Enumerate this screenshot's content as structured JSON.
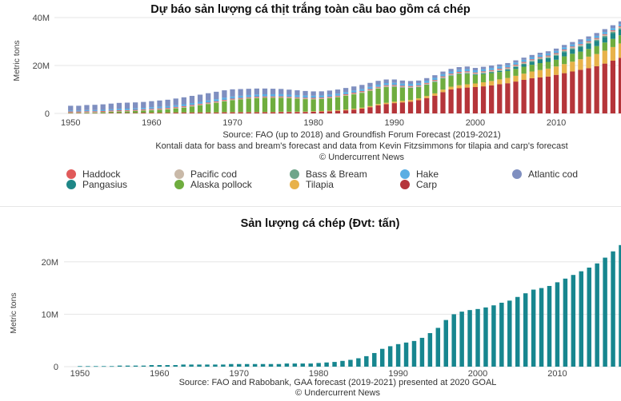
{
  "chart_data": [
    {
      "type": "bar",
      "stacked": true,
      "title": "Dự báo sản lượng cá thịt trắng toàn cầu bao gồm cá chép",
      "ylabel": "Metric tons",
      "xlabel": "",
      "ylim": [
        0,
        40000000
      ],
      "yticks": [
        0,
        20000000,
        40000000
      ],
      "ytick_labels": [
        "0",
        "20M",
        "40M"
      ],
      "xticks": [
        1950,
        1960,
        1970,
        1980,
        1990,
        2000,
        2010
      ],
      "x_range": [
        1948,
        2018
      ],
      "grid": true,
      "legend_position": "bottom",
      "sources": [
        "Source: FAO (up to 2018) and Groundfish Forum Forecast (2019-2021)",
        "Kontali data for bass and bream's forecast and data from Kevin Fitzsimmons for tilapia and carp's forecast",
        "© Undercurrent News"
      ],
      "x": [
        1950,
        1951,
        1952,
        1953,
        1954,
        1955,
        1956,
        1957,
        1958,
        1959,
        1960,
        1961,
        1962,
        1963,
        1964,
        1965,
        1966,
        1967,
        1968,
        1969,
        1970,
        1971,
        1972,
        1973,
        1974,
        1975,
        1976,
        1977,
        1978,
        1979,
        1980,
        1981,
        1982,
        1983,
        1984,
        1985,
        1986,
        1987,
        1988,
        1989,
        1990,
        1991,
        1992,
        1993,
        1994,
        1995,
        1996,
        1997,
        1998,
        1999,
        2000,
        2001,
        2002,
        2003,
        2004,
        2005,
        2006,
        2007,
        2008,
        2009,
        2010,
        2011,
        2012,
        2013,
        2014,
        2015,
        2016,
        2017,
        2018
      ],
      "series": [
        {
          "name": "Carp",
          "color": "#b5353a",
          "values": [
            0.1,
            0.1,
            0.1,
            0.1,
            0.1,
            0.2,
            0.2,
            0.2,
            0.2,
            0.3,
            0.3,
            0.3,
            0.3,
            0.4,
            0.4,
            0.4,
            0.4,
            0.4,
            0.4,
            0.5,
            0.5,
            0.5,
            0.5,
            0.5,
            0.5,
            0.5,
            0.6,
            0.6,
            0.6,
            0.6,
            0.7,
            0.8,
            0.9,
            1.1,
            1.3,
            1.6,
            2.0,
            2.6,
            3.4,
            3.9,
            4.3,
            4.6,
            4.9,
            5.5,
            6.4,
            7.4,
            8.9,
            10.0,
            10.5,
            10.8,
            11.0,
            11.3,
            11.7,
            12.2,
            12.6,
            13.3,
            14.0,
            14.7,
            15.0,
            15.4,
            16.1,
            16.8,
            17.5,
            18.2,
            18.9,
            19.7,
            20.8,
            22.0,
            23.2
          ]
        },
        {
          "name": "Tilapia",
          "color": "#e8b24a",
          "values": [
            0,
            0,
            0,
            0,
            0,
            0,
            0,
            0,
            0,
            0,
            0.01,
            0.01,
            0.02,
            0.02,
            0.03,
            0.03,
            0.04,
            0.04,
            0.05,
            0.05,
            0.06,
            0.07,
            0.08,
            0.09,
            0.1,
            0.11,
            0.12,
            0.13,
            0.15,
            0.17,
            0.2,
            0.22,
            0.25,
            0.28,
            0.32,
            0.36,
            0.4,
            0.45,
            0.5,
            0.55,
            0.6,
            0.65,
            0.72,
            0.8,
            0.88,
            0.96,
            1.05,
            1.15,
            1.25,
            1.35,
            1.5,
            1.7,
            1.85,
            2.0,
            2.2,
            2.4,
            2.6,
            2.8,
            3.1,
            3.3,
            3.5,
            3.8,
            4.1,
            4.4,
            4.8,
            5.1,
            5.4,
            5.7,
            6.0
          ]
        },
        {
          "name": "Alaska pollock",
          "color": "#6fad3f",
          "values": [
            0.2,
            0.2,
            0.3,
            0.3,
            0.4,
            0.5,
            0.6,
            0.7,
            0.8,
            0.9,
            1.0,
            1.2,
            1.4,
            1.7,
            2.0,
            2.5,
            3.0,
            3.5,
            4.0,
            4.5,
            5.0,
            5.3,
            5.6,
            5.8,
            5.9,
            5.9,
            5.8,
            5.6,
            5.4,
            5.2,
            5.0,
            5.0,
            5.2,
            5.4,
            5.8,
            6.0,
            6.2,
            6.4,
            6.5,
            6.6,
            6.2,
            5.5,
            5.0,
            4.6,
            4.6,
            4.7,
            4.6,
            4.5,
            4.6,
            4.4,
            3.5,
            3.4,
            3.3,
            3.1,
            2.9,
            2.9,
            2.9,
            2.8,
            2.9,
            2.8,
            2.8,
            3.2,
            3.3,
            3.2,
            3.2,
            3.3,
            3.4,
            3.4,
            3.4
          ]
        },
        {
          "name": "Pangasius",
          "color": "#1f8787",
          "values": [
            0,
            0,
            0,
            0,
            0,
            0,
            0,
            0,
            0,
            0,
            0,
            0,
            0,
            0,
            0,
            0,
            0,
            0,
            0,
            0,
            0,
            0,
            0,
            0,
            0,
            0,
            0,
            0,
            0,
            0,
            0,
            0,
            0,
            0,
            0,
            0,
            0,
            0,
            0,
            0,
            0.05,
            0.06,
            0.07,
            0.08,
            0.1,
            0.12,
            0.14,
            0.16,
            0.18,
            0.2,
            0.25,
            0.3,
            0.35,
            0.45,
            0.6,
            0.8,
            1.0,
            1.3,
            1.5,
            1.6,
            1.7,
            1.8,
            1.9,
            2.0,
            2.1,
            2.2,
            2.3,
            2.4,
            2.5
          ]
        },
        {
          "name": "Bass & Bream",
          "color": "#6fa58a",
          "values": [
            0,
            0,
            0,
            0,
            0,
            0,
            0,
            0,
            0,
            0,
            0,
            0,
            0,
            0,
            0,
            0,
            0,
            0,
            0,
            0,
            0,
            0,
            0,
            0,
            0,
            0,
            0,
            0,
            0,
            0,
            0,
            0,
            0,
            0,
            0,
            0,
            0,
            0,
            0,
            0.01,
            0.02,
            0.03,
            0.04,
            0.05,
            0.06,
            0.07,
            0.08,
            0.09,
            0.1,
            0.12,
            0.14,
            0.16,
            0.18,
            0.2,
            0.22,
            0.25,
            0.28,
            0.3,
            0.32,
            0.34,
            0.36,
            0.38,
            0.4,
            0.42,
            0.44,
            0.46,
            0.48,
            0.5,
            0.52
          ]
        },
        {
          "name": "Pacific cod",
          "color": "#c9b9a8",
          "values": [
            0.2,
            0.2,
            0.2,
            0.2,
            0.2,
            0.2,
            0.2,
            0.2,
            0.2,
            0.2,
            0.3,
            0.3,
            0.3,
            0.3,
            0.3,
            0.3,
            0.3,
            0.3,
            0.3,
            0.3,
            0.3,
            0.3,
            0.3,
            0.3,
            0.3,
            0.3,
            0.3,
            0.3,
            0.3,
            0.3,
            0.3,
            0.3,
            0.3,
            0.3,
            0.3,
            0.4,
            0.4,
            0.4,
            0.4,
            0.4,
            0.4,
            0.4,
            0.4,
            0.4,
            0.4,
            0.4,
            0.4,
            0.4,
            0.4,
            0.4,
            0.4,
            0.4,
            0.4,
            0.4,
            0.4,
            0.4,
            0.4,
            0.4,
            0.4,
            0.4,
            0.4,
            0.4,
            0.4,
            0.4,
            0.4,
            0.4,
            0.4,
            0.4,
            0.4
          ]
        },
        {
          "name": "Haddock",
          "color": "#e05a5a",
          "values": [
            0.3,
            0.3,
            0.3,
            0.3,
            0.3,
            0.3,
            0.3,
            0.3,
            0.3,
            0.3,
            0.3,
            0.3,
            0.3,
            0.3,
            0.3,
            0.3,
            0.3,
            0.3,
            0.3,
            0.3,
            0.3,
            0.3,
            0.3,
            0.3,
            0.3,
            0.3,
            0.3,
            0.3,
            0.3,
            0.3,
            0.3,
            0.3,
            0.3,
            0.3,
            0.3,
            0.3,
            0.3,
            0.3,
            0.3,
            0.3,
            0.3,
            0.3,
            0.3,
            0.3,
            0.3,
            0.3,
            0.3,
            0.3,
            0.3,
            0.3,
            0.3,
            0.3,
            0.3,
            0.3,
            0.3,
            0.3,
            0.3,
            0.3,
            0.3,
            0.3,
            0.3,
            0.3,
            0.3,
            0.3,
            0.3,
            0.3,
            0.3,
            0.3,
            0.3
          ]
        },
        {
          "name": "Hake",
          "color": "#5aaee3",
          "values": [
            0.4,
            0.4,
            0.5,
            0.5,
            0.5,
            0.5,
            0.6,
            0.6,
            0.6,
            0.6,
            0.7,
            0.7,
            0.7,
            0.7,
            0.8,
            0.8,
            0.8,
            0.9,
            0.9,
            0.9,
            0.9,
            0.9,
            0.9,
            0.9,
            0.9,
            0.9,
            0.9,
            0.9,
            0.9,
            0.9,
            0.9,
            0.9,
            0.9,
            0.9,
            0.9,
            0.9,
            0.9,
            0.9,
            0.9,
            0.9,
            0.9,
            0.9,
            0.9,
            0.9,
            0.9,
            0.9,
            0.9,
            0.9,
            0.9,
            0.9,
            0.9,
            0.9,
            0.9,
            0.9,
            0.9,
            0.9,
            0.9,
            0.9,
            0.9,
            0.9,
            0.9,
            0.9,
            0.9,
            0.9,
            0.9,
            0.9,
            0.9,
            0.9,
            0.9
          ]
        },
        {
          "name": "Atlantic cod",
          "color": "#7f8fc0",
          "values": [
            2.0,
            2.0,
            2.1,
            2.2,
            2.3,
            2.4,
            2.5,
            2.5,
            2.5,
            2.5,
            2.5,
            2.6,
            2.7,
            2.8,
            2.9,
            3.0,
            3.0,
            3.0,
            3.1,
            3.1,
            3.0,
            2.8,
            2.6,
            2.5,
            2.4,
            2.3,
            2.2,
            2.1,
            2.0,
            1.9,
            1.8,
            1.7,
            1.7,
            1.7,
            1.7,
            1.7,
            1.7,
            1.7,
            1.6,
            1.5,
            1.4,
            1.3,
            1.2,
            1.1,
            1.1,
            1.1,
            1.1,
            1.1,
            1.1,
            1.1,
            1.0,
            1.0,
            1.0,
            0.9,
            0.9,
            0.9,
            0.9,
            0.9,
            0.9,
            0.9,
            1.0,
            1.0,
            1.0,
            1.1,
            1.1,
            1.2,
            1.2,
            1.2,
            1.2
          ]
        }
      ],
      "value_unit": "million metric tons",
      "legend_order": [
        "Haddock",
        "Pacific cod",
        "Bass & Bream",
        "Hake",
        "Atlantic cod",
        "Pangasius",
        "Alaska pollock",
        "Tilapia",
        "Carp"
      ]
    },
    {
      "type": "bar",
      "title": "Sản lượng cá chép (Đvt: tấn)",
      "ylabel": "Metric tons",
      "xlabel": "",
      "ylim": [
        0,
        25000000
      ],
      "yticks": [
        0,
        10000000,
        20000000
      ],
      "ytick_labels": [
        "0",
        "10M",
        "20M"
      ],
      "xticks": [
        1950,
        1960,
        1970,
        1980,
        1990,
        2000,
        2010
      ],
      "x_range": [
        1948,
        2018
      ],
      "grid": true,
      "color": "#17868f",
      "sources": [
        "Source: FAO and Rabobank, GAA forecast (2019-2021) presented at 2020 GOAL",
        "© Undercurrent News"
      ],
      "x": [
        1950,
        1951,
        1952,
        1953,
        1954,
        1955,
        1956,
        1957,
        1958,
        1959,
        1960,
        1961,
        1962,
        1963,
        1964,
        1965,
        1966,
        1967,
        1968,
        1969,
        1970,
        1971,
        1972,
        1973,
        1974,
        1975,
        1976,
        1977,
        1978,
        1979,
        1980,
        1981,
        1982,
        1983,
        1984,
        1985,
        1986,
        1987,
        1988,
        1989,
        1990,
        1991,
        1992,
        1993,
        1994,
        1995,
        1996,
        1997,
        1998,
        1999,
        2000,
        2001,
        2002,
        2003,
        2004,
        2005,
        2006,
        2007,
        2008,
        2009,
        2010,
        2011,
        2012,
        2013,
        2014,
        2015,
        2016,
        2017,
        2018
      ],
      "series": [
        {
          "name": "Carp",
          "values": [
            0.1,
            0.1,
            0.1,
            0.1,
            0.1,
            0.2,
            0.2,
            0.2,
            0.2,
            0.3,
            0.3,
            0.3,
            0.3,
            0.4,
            0.4,
            0.4,
            0.4,
            0.4,
            0.4,
            0.5,
            0.5,
            0.5,
            0.5,
            0.5,
            0.5,
            0.5,
            0.6,
            0.6,
            0.6,
            0.6,
            0.7,
            0.8,
            0.9,
            1.1,
            1.3,
            1.6,
            2.0,
            2.6,
            3.4,
            3.9,
            4.3,
            4.6,
            4.9,
            5.5,
            6.4,
            7.4,
            8.9,
            10.0,
            10.5,
            10.8,
            11.0,
            11.3,
            11.7,
            12.2,
            12.6,
            13.3,
            14.0,
            14.7,
            15.0,
            15.4,
            16.1,
            16.8,
            17.5,
            18.2,
            18.9,
            19.7,
            20.8,
            22.0,
            23.2
          ]
        }
      ],
      "value_unit": "million metric tons"
    }
  ]
}
